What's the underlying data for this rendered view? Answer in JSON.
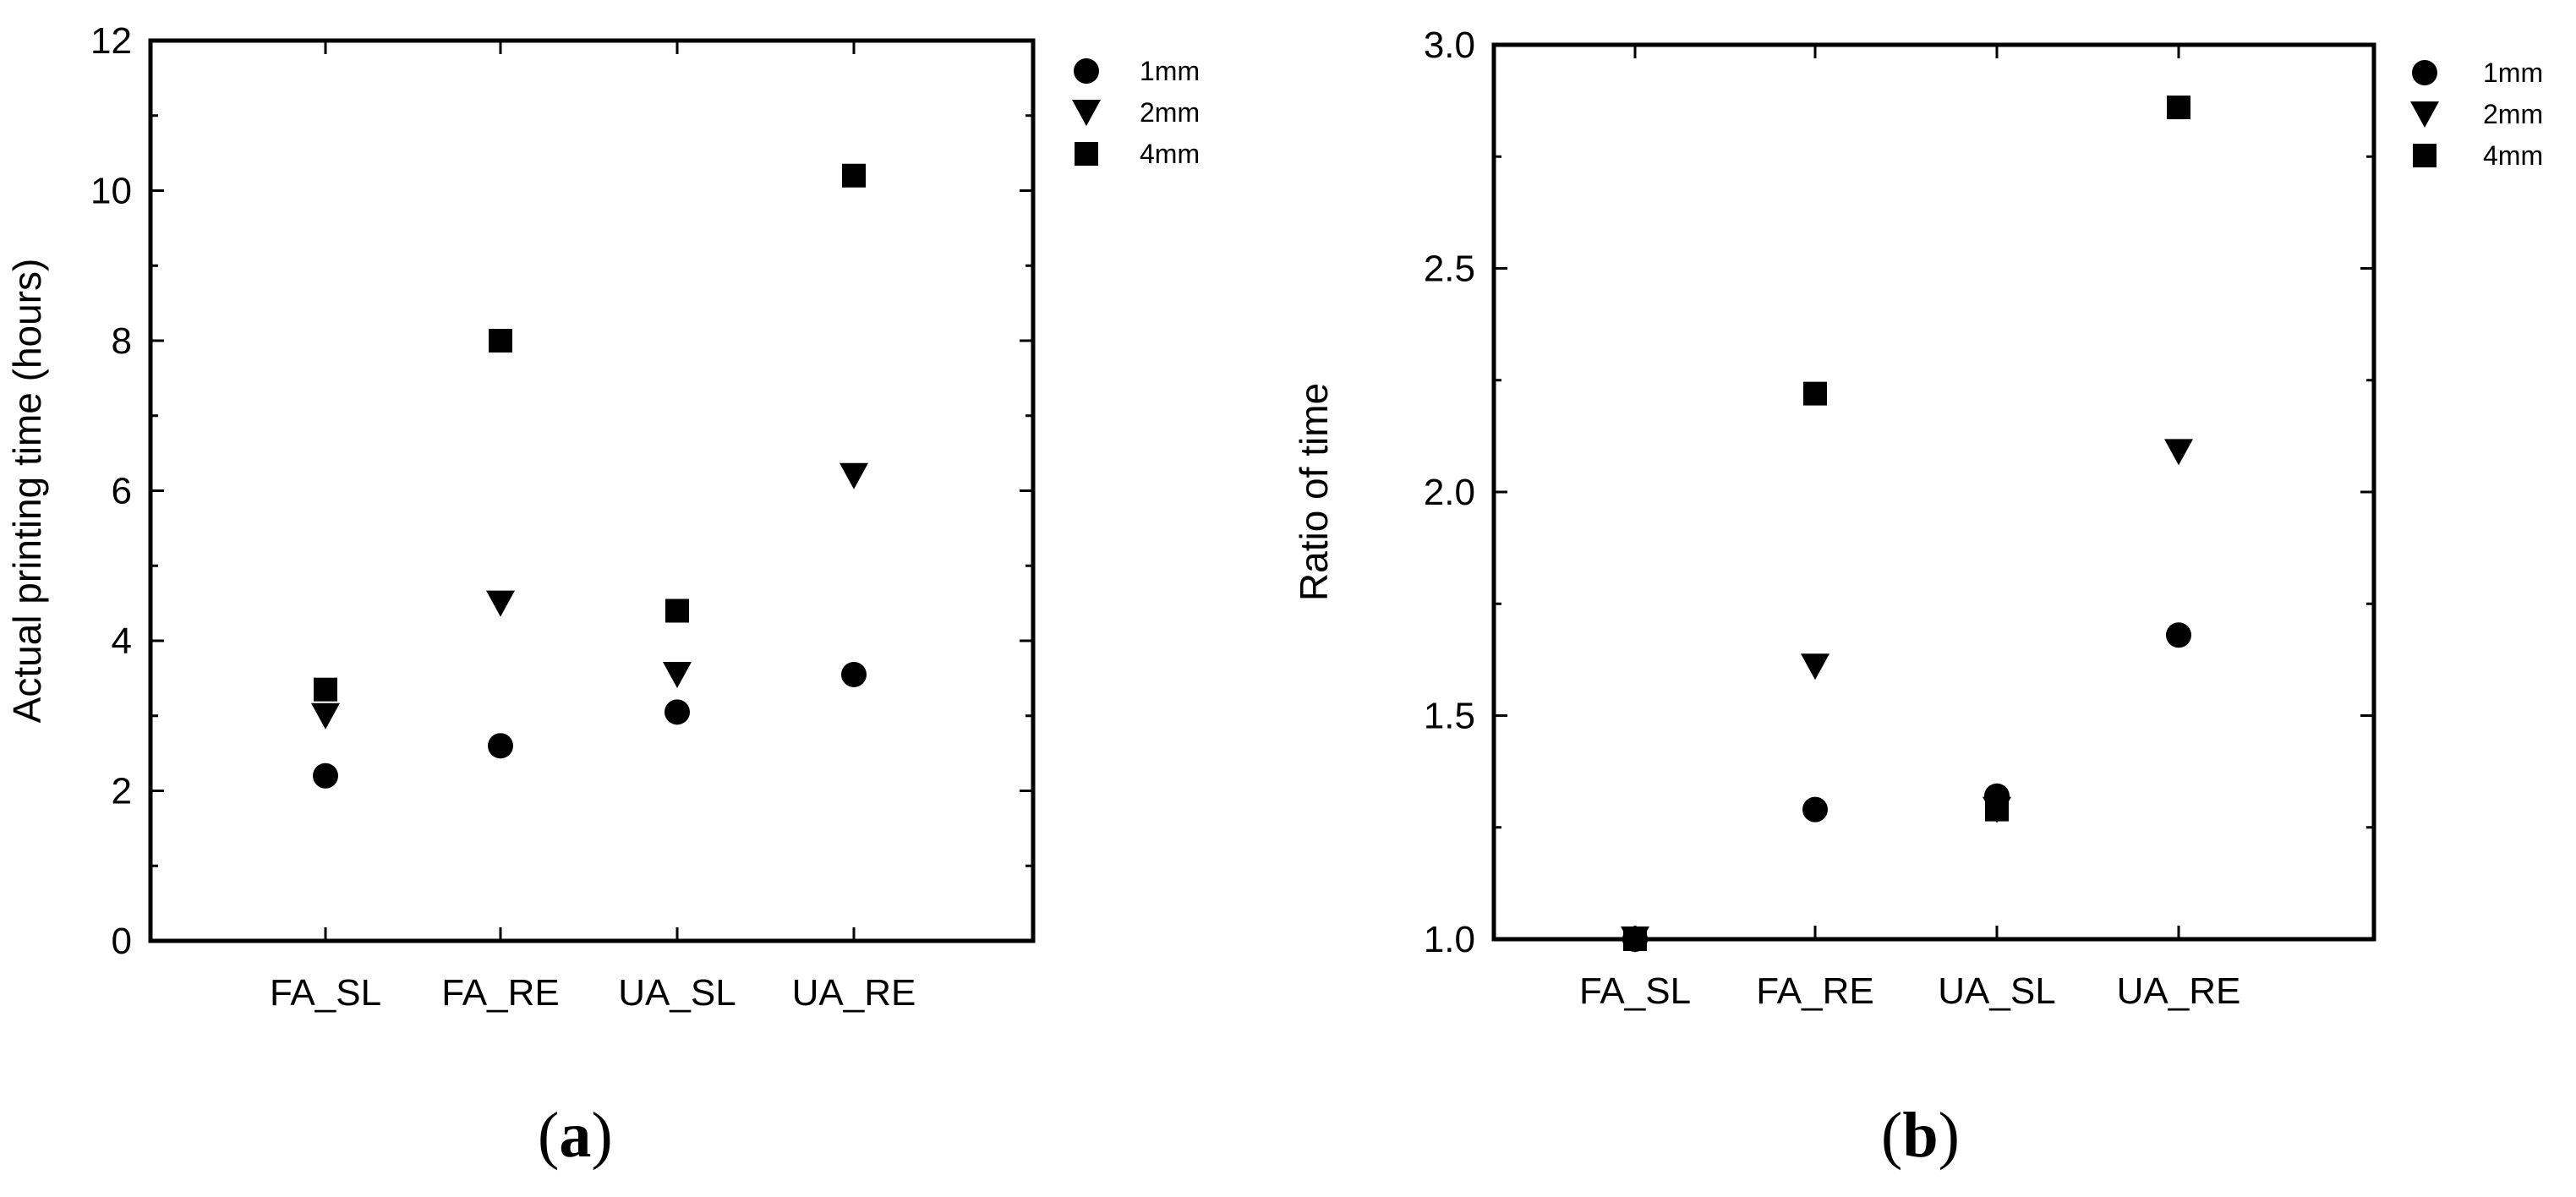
{
  "chart_data": [
    {
      "type": "scatter",
      "panel_label": "a",
      "ylabel": "Actual printing time (hours)",
      "xlabel": "",
      "categories": [
        "FA_SL",
        "FA_RE",
        "UA_SL",
        "UA_RE"
      ],
      "ylim": [
        0,
        12
      ],
      "yticks": [
        0,
        2,
        4,
        6,
        8,
        10,
        12
      ],
      "legend_position": "top-right, outside plot",
      "series": [
        {
          "name": "1mm",
          "marker": "circle",
          "values": [
            2.2,
            2.6,
            3.05,
            3.55
          ]
        },
        {
          "name": "2mm",
          "marker": "triangle-down",
          "values": [
            3.0,
            4.5,
            3.55,
            6.2
          ]
        },
        {
          "name": "4mm",
          "marker": "square",
          "values": [
            3.35,
            8.0,
            4.4,
            10.2
          ]
        }
      ]
    },
    {
      "type": "scatter",
      "panel_label": "b",
      "ylabel": "Ratio of time",
      "xlabel": "",
      "categories": [
        "FA_SL",
        "FA_RE",
        "UA_SL",
        "UA_RE"
      ],
      "ylim": [
        1.0,
        3.0
      ],
      "yticks": [
        "1.0",
        "1.5",
        "2.0",
        "2.5",
        "3.0"
      ],
      "legend_position": "top-right, outside plot",
      "series": [
        {
          "name": "1mm",
          "marker": "circle",
          "values": [
            1.0,
            1.29,
            1.32,
            1.68
          ]
        },
        {
          "name": "2mm",
          "marker": "triangle-down",
          "values": [
            1.0,
            1.61,
            1.29,
            2.09
          ]
        },
        {
          "name": "4mm",
          "marker": "square",
          "values": [
            1.0,
            2.22,
            1.29,
            2.86
          ]
        }
      ]
    }
  ]
}
